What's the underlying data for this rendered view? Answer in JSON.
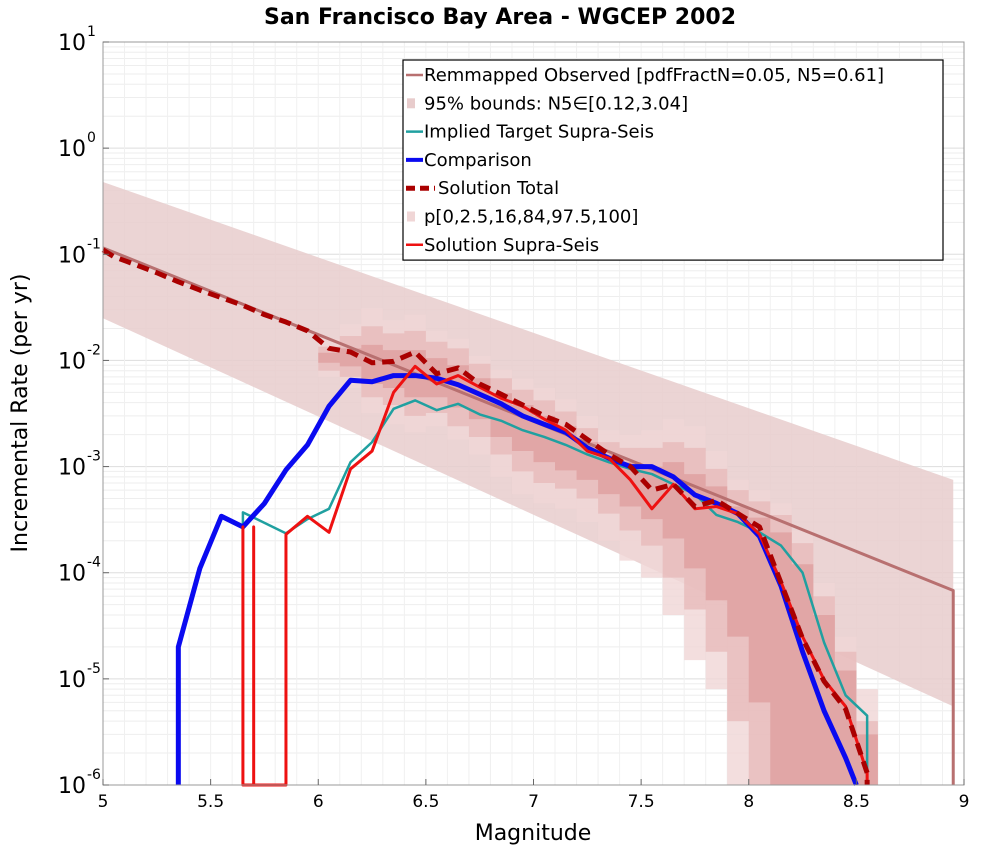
{
  "chart_data": {
    "type": "line",
    "title": "San Francisco Bay Area - WGCEP 2002",
    "xlabel": "Magnitude",
    "ylabel": "Incremental Rate (per yr)",
    "xlim": [
      5,
      9
    ],
    "ylim": [
      1e-06,
      10
    ],
    "yscale": "log",
    "grid": true,
    "legend_position": "top-right",
    "xticks": [
      "5",
      "5.5",
      "6",
      "6.5",
      "7",
      "7.5",
      "8",
      "8.5",
      "9"
    ],
    "yticks": [
      {
        "base": "10",
        "exp": "-6"
      },
      {
        "base": "10",
        "exp": "-5"
      },
      {
        "base": "10",
        "exp": "-4"
      },
      {
        "base": "10",
        "exp": "-3"
      },
      {
        "base": "10",
        "exp": "-2"
      },
      {
        "base": "10",
        "exp": "-1"
      },
      {
        "base": "10",
        "exp": "0"
      },
      {
        "base": "10",
        "exp": "1"
      }
    ],
    "bands": [
      {
        "name": "95% bounds: N5∈[0.12,3.04]",
        "color": "#e8cccc",
        "x": [
          5,
          8.95
        ],
        "lower": [
          0.025,
          5.5e-06
        ],
        "upper": [
          0.48,
          0.00075
        ]
      }
    ],
    "percentile_bands": {
      "name": "p[0,2.5,16,84,97.5,100]",
      "x": [
        6.05,
        6.15,
        6.25,
        6.35,
        6.45,
        6.55,
        6.65,
        6.75,
        6.85,
        6.95,
        7.05,
        7.15,
        7.25,
        7.35,
        7.45,
        7.55,
        7.65,
        7.75,
        7.85,
        7.95,
        8.05,
        8.15,
        8.25,
        8.35,
        8.45,
        8.55
      ],
      "layers": [
        {
          "color": "#f0d6d6",
          "lower": [
            0.007,
            0.0055,
            0.0032,
            0.0025,
            0.0021,
            0.0024,
            0.0018,
            0.0013,
            0.0008,
            0.00055,
            0.00045,
            0.0004,
            0.0003,
            0.0002,
            0.00013,
            9e-05,
            4e-05,
            1.5e-05,
            8e-06,
            1e-06,
            1e-06,
            1e-06,
            1e-06,
            1e-06,
            1e-06,
            1e-06
          ],
          "upper": [
            0.016,
            0.022,
            0.031,
            0.024,
            0.027,
            0.019,
            0.016,
            0.011,
            0.0082,
            0.0067,
            0.0055,
            0.0043,
            0.003,
            0.0022,
            0.002,
            0.0022,
            0.0028,
            0.0024,
            0.0014,
            0.00075,
            0.0006,
            0.00045,
            0.00025,
            8e-05,
            2.5e-05,
            8e-06
          ]
        },
        {
          "color": "#e7baba",
          "lower": [
            0.008,
            0.007,
            0.0045,
            0.0038,
            0.003,
            0.0032,
            0.0024,
            0.0019,
            0.0013,
            0.0009,
            0.0007,
            0.00062,
            0.0005,
            0.00036,
            0.00025,
            0.00018,
            9e-05,
            4.5e-05,
            1.8e-05,
            4e-06,
            1e-06,
            1e-06,
            1e-06,
            1e-06,
            1e-06,
            1e-06
          ],
          "upper": [
            0.0135,
            0.017,
            0.021,
            0.018,
            0.019,
            0.015,
            0.013,
            0.0093,
            0.0068,
            0.0053,
            0.0042,
            0.0033,
            0.0023,
            0.0017,
            0.0015,
            0.0015,
            0.0017,
            0.0015,
            0.00095,
            0.0006,
            0.00047,
            0.00035,
            0.00019,
            6e-05,
            1.8e-05,
            4e-06
          ]
        },
        {
          "color": "#de9f9f",
          "lower": [
            0.0095,
            0.0088,
            0.006,
            0.0055,
            0.0045,
            0.0045,
            0.0036,
            0.0028,
            0.0019,
            0.0014,
            0.0011,
            0.00092,
            0.00075,
            0.00055,
            0.00042,
            0.00032,
            0.00021,
            0.00011,
            5.5e-05,
            2.5e-05,
            6e-06,
            1e-06,
            1e-06,
            1e-06,
            1e-06,
            1e-06
          ],
          "upper": [
            0.0118,
            0.013,
            0.014,
            0.0125,
            0.0125,
            0.0105,
            0.009,
            0.0068,
            0.0049,
            0.0038,
            0.003,
            0.0024,
            0.0017,
            0.0013,
            0.0011,
            0.001,
            0.0011,
            0.00085,
            0.00065,
            0.00042,
            0.00033,
            0.00024,
            0.00012,
            4e-05,
            1.2e-05,
            3e-06
          ]
        }
      ]
    },
    "series": [
      {
        "name": "Remmapped Observed [pdfFractN=0.05, N5=0.61]",
        "color": "#b87070",
        "width": 3,
        "dash": "",
        "x": [
          5,
          8.95,
          8.95
        ],
        "y": [
          0.115,
          6.8e-05,
          1e-06
        ]
      },
      {
        "name": "Implied Target Supra-Seis",
        "color": "#20a0a0",
        "width": 2.5,
        "dash": "",
        "x": [
          5.65,
          5.65,
          5.65,
          5.85,
          5.85,
          5.95,
          6.05,
          6.15,
          6.25,
          6.35,
          6.45,
          6.55,
          6.65,
          6.75,
          6.85,
          6.95,
          7.05,
          7.15,
          7.25,
          7.35,
          7.45,
          7.55,
          7.65,
          7.75,
          7.85,
          7.95,
          8.05,
          8.15,
          8.25,
          8.35,
          8.45,
          8.55,
          8.55
        ],
        "y": [
          0.00037,
          0.00026,
          0.00037,
          0.000235,
          0.000235,
          0.00032,
          0.0004,
          0.0011,
          0.0017,
          0.0035,
          0.0042,
          0.0034,
          0.0039,
          0.0031,
          0.0027,
          0.0022,
          0.0019,
          0.0016,
          0.0013,
          0.0011,
          0.00095,
          0.00085,
          0.00068,
          0.00055,
          0.00035,
          0.0003,
          0.00024,
          0.00018,
          0.0001,
          2.2e-05,
          7e-06,
          4.5e-06,
          1e-06
        ]
      },
      {
        "name": "Comparison",
        "color": "#0a0af0",
        "width": 5,
        "dash": "",
        "x": [
          5.35,
          5.35,
          5.45,
          5.55,
          5.65,
          5.75,
          5.85,
          5.95,
          6.05,
          6.15,
          6.25,
          6.35,
          6.45,
          6.55,
          6.65,
          6.75,
          6.85,
          6.95,
          7.05,
          7.15,
          7.25,
          7.35,
          7.45,
          7.55,
          7.65,
          7.75,
          7.85,
          7.95,
          8.05,
          8.15,
          8.25,
          8.35,
          8.45,
          8.5
        ],
        "y": [
          1e-06,
          2e-05,
          0.00011,
          0.00034,
          0.00027,
          0.00045,
          0.00093,
          0.0016,
          0.0037,
          0.0065,
          0.0063,
          0.0072,
          0.0072,
          0.0068,
          0.0059,
          0.0048,
          0.0039,
          0.003,
          0.0025,
          0.0021,
          0.0015,
          0.0012,
          0.001,
          0.001,
          0.0008,
          0.00054,
          0.00045,
          0.00036,
          0.00022,
          7.5e-05,
          1.8e-05,
          5e-06,
          1.8e-06,
          1e-06
        ]
      },
      {
        "name": "Solution Supra-Seis",
        "color": "#ee1111",
        "width": 3,
        "dash": "",
        "x": [
          5.65,
          5.65,
          5.65,
          5.7,
          5.7,
          5.7,
          5.85,
          5.85,
          5.95,
          6.05,
          6.15,
          6.25,
          6.35,
          6.45,
          6.55,
          6.65,
          6.75,
          6.85,
          6.95,
          7.05,
          7.15,
          7.25,
          7.35,
          7.45,
          7.55,
          7.65,
          7.75,
          7.85,
          7.95,
          8.05,
          8.15,
          8.25,
          8.35,
          8.45,
          8.55,
          8.55
        ],
        "y": [
          1e-06,
          0.00027,
          1e-06,
          1e-06,
          0.00027,
          1e-06,
          1e-06,
          0.00023,
          0.00034,
          0.00024,
          0.00095,
          0.0014,
          0.005,
          0.0088,
          0.006,
          0.0072,
          0.0056,
          0.0044,
          0.0037,
          0.0028,
          0.0022,
          0.0014,
          0.0012,
          0.00075,
          0.0004,
          0.00068,
          0.0004,
          0.00042,
          0.00036,
          0.00023,
          8.2e-05,
          2.5e-05,
          9.8e-06,
          5.5e-06,
          1.3e-06,
          1e-06
        ]
      },
      {
        "name": "Solution Total",
        "color": "#aa0000",
        "width": 5,
        "dash": "12,7",
        "x": [
          5,
          5.05,
          5.15,
          5.25,
          5.35,
          5.45,
          5.55,
          5.65,
          5.75,
          5.85,
          5.95,
          6.05,
          6.15,
          6.25,
          6.35,
          6.45,
          6.55,
          6.65,
          6.75,
          6.85,
          6.95,
          7.05,
          7.15,
          7.25,
          7.35,
          7.45,
          7.55,
          7.65,
          7.75,
          7.85,
          7.95,
          8.05,
          8.15,
          8.25,
          8.35,
          8.45,
          8.55,
          8.55
        ],
        "y": [
          0.11,
          0.095,
          0.08,
          0.067,
          0.055,
          0.046,
          0.039,
          0.033,
          0.027,
          0.023,
          0.019,
          0.013,
          0.012,
          0.0095,
          0.0098,
          0.012,
          0.0075,
          0.0085,
          0.006,
          0.0048,
          0.0038,
          0.003,
          0.0025,
          0.0018,
          0.0013,
          0.001,
          0.0006,
          0.00068,
          0.00042,
          0.00048,
          0.00036,
          0.00027,
          8e-05,
          2.4e-05,
          9.5e-06,
          5.2e-06,
          1.3e-06,
          1e-06
        ]
      }
    ],
    "legend": [
      {
        "label": "Remmapped Observed [pdfFractN=0.05, N5=0.61]",
        "color": "#b87070",
        "style": "line"
      },
      {
        "label": "95% bounds: N5∈[0.12,3.04]",
        "color": "#e8cccc",
        "style": "patch"
      },
      {
        "label": "Implied Target Supra-Seis",
        "color": "#20a0a0",
        "style": "line"
      },
      {
        "label": "Comparison",
        "color": "#0a0af0",
        "style": "thick"
      },
      {
        "label": "Solution Total",
        "color": "#aa0000",
        "style": "dashed"
      },
      {
        "label": "p[0,2.5,16,84,97.5,100]",
        "color": "#f0d6d6",
        "style": "patch"
      },
      {
        "label": "Solution Supra-Seis",
        "color": "#ee1111",
        "style": "line"
      }
    ]
  }
}
